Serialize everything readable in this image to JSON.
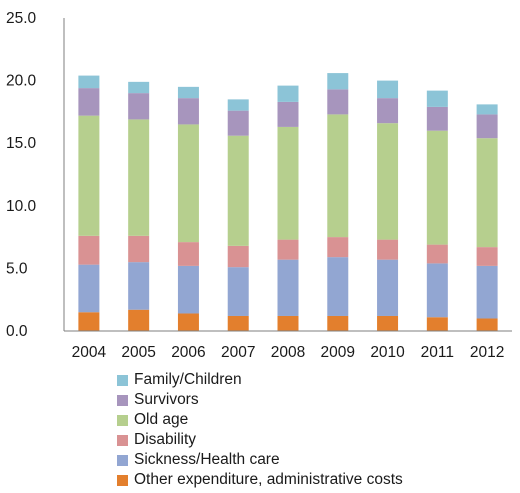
{
  "chart_data": {
    "type": "bar",
    "stacked": true,
    "categories": [
      "2004",
      "2005",
      "2006",
      "2007",
      "2008",
      "2009",
      "2010",
      "2011",
      "2012"
    ],
    "ylim": [
      0,
      25
    ],
    "y_ticks": [
      "0.0",
      "5.0",
      "10.0",
      "15.0",
      "20.0",
      "25.0"
    ],
    "grid": false,
    "legend_position": "bottom",
    "series": [
      {
        "name": "Other expenditure, administrative costs",
        "color": "#e37f2d",
        "values": [
          1.5,
          1.7,
          1.4,
          1.2,
          1.2,
          1.2,
          1.2,
          1.1,
          1.0
        ]
      },
      {
        "name": "Sickness/Health care",
        "color": "#92a6d2",
        "values": [
          3.8,
          3.8,
          3.8,
          3.9,
          4.5,
          4.7,
          4.5,
          4.3,
          4.2
        ]
      },
      {
        "name": "Disability",
        "color": "#d99293",
        "values": [
          2.3,
          2.1,
          1.9,
          1.7,
          1.6,
          1.6,
          1.6,
          1.5,
          1.5
        ]
      },
      {
        "name": "Old age",
        "color": "#b6cf8e",
        "values": [
          9.6,
          9.3,
          9.4,
          8.8,
          9.0,
          9.8,
          9.3,
          9.1,
          8.7
        ]
      },
      {
        "name": "Survivors",
        "color": "#a795bd",
        "values": [
          2.2,
          2.1,
          2.1,
          2.0,
          2.0,
          2.0,
          2.0,
          1.9,
          1.9
        ]
      },
      {
        "name": "Family/Children",
        "color": "#8cc4d7",
        "values": [
          1.0,
          0.9,
          0.9,
          0.9,
          1.3,
          1.3,
          1.4,
          1.3,
          0.8
        ]
      }
    ]
  },
  "legend_order": [
    5,
    4,
    3,
    2,
    1,
    0
  ]
}
